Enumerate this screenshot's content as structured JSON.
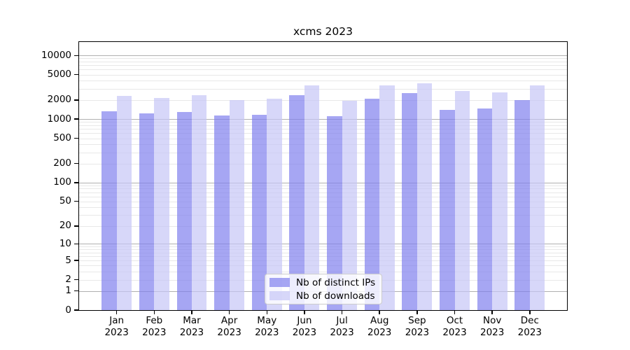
{
  "title": "xcms 2023",
  "chart_data": {
    "type": "bar",
    "title": "xcms 2023",
    "categories": [
      "Jan",
      "Feb",
      "Mar",
      "Apr",
      "May",
      "Jun",
      "Jul",
      "Aug",
      "Sep",
      "Oct",
      "Nov",
      "Dec"
    ],
    "year_label": "2023",
    "series": [
      {
        "name": "Nb of distinct IPs",
        "color": "#8080ee",
        "alpha": 0.7,
        "values": [
          1320,
          1230,
          1290,
          1140,
          1180,
          2400,
          1110,
          2100,
          2540,
          1390,
          1460,
          1990
        ]
      },
      {
        "name": "Nb of downloads",
        "color": "#c6c6f6",
        "alpha": 0.7,
        "values": [
          2330,
          2150,
          2360,
          2010,
          2100,
          3350,
          1930,
          3390,
          3640,
          2770,
          2620,
          3360
        ]
      }
    ],
    "yscale": "log1p",
    "yticks": [
      0,
      1,
      2,
      5,
      10,
      20,
      50,
      100,
      200,
      500,
      1000,
      2000,
      5000,
      10000
    ],
    "ylim": [
      0,
      16300
    ],
    "xlim": [
      -1,
      12
    ],
    "bar_width_fraction": 0.4,
    "grid": true,
    "gridline_major_color": "#b0b0b0",
    "gridline_minor_color": "#e8e8e8",
    "legend_position": "lower center"
  }
}
